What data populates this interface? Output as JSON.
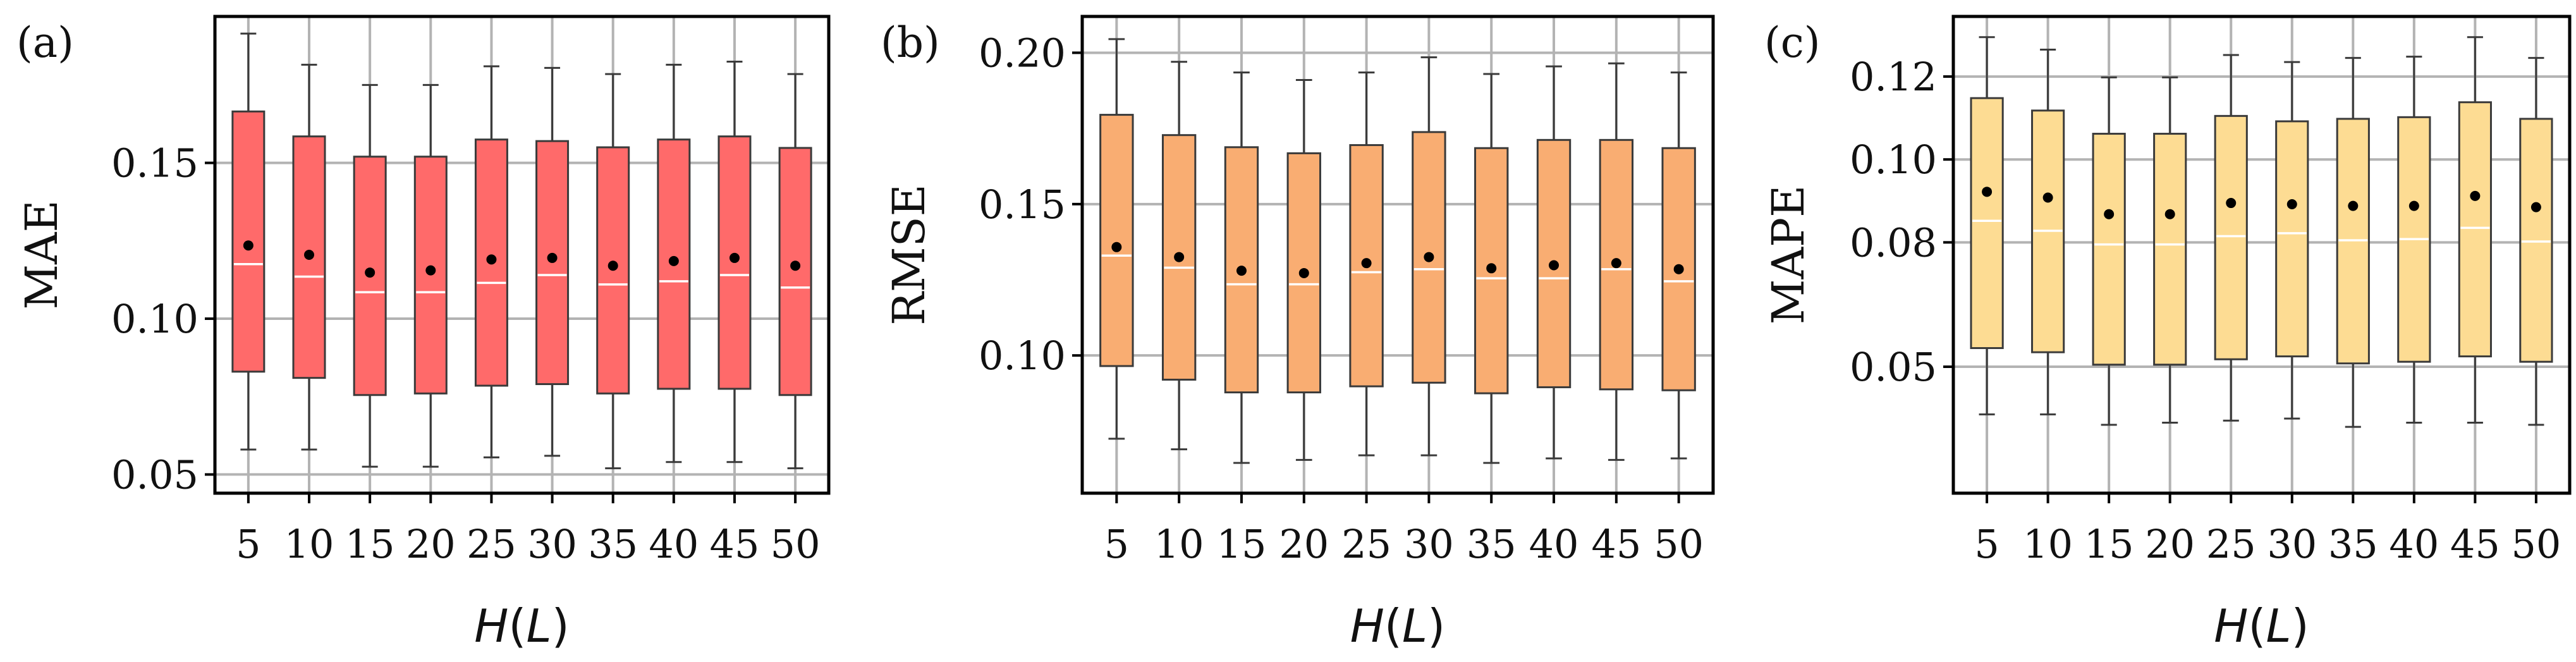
{
  "chart_data": [
    {
      "panel_label": "(a)",
      "type": "box",
      "ylabel": "MAE",
      "xlabel": "H(L)",
      "xlabel_parts": {
        "var": "H",
        "open": "(",
        "arg": "L",
        "close": ")"
      },
      "categories": [
        "5",
        "10",
        "15",
        "20",
        "25",
        "30",
        "35",
        "40",
        "45",
        "50"
      ],
      "ylim": [
        0.044,
        0.197
      ],
      "yticks": [
        0.05,
        0.1,
        0.15
      ],
      "ytick_labels": [
        "0.05",
        "0.10",
        "0.15"
      ],
      "grid": true,
      "box_color": "#ff6a6a",
      "boxes": [
        {
          "whisker_low": 0.058,
          "q1": 0.083,
          "median": 0.1175,
          "mean": 0.1235,
          "q3": 0.1665,
          "whisker_high": 0.1915
        },
        {
          "whisker_low": 0.058,
          "q1": 0.081,
          "median": 0.1135,
          "mean": 0.1205,
          "q3": 0.1585,
          "whisker_high": 0.1815
        },
        {
          "whisker_low": 0.0525,
          "q1": 0.0755,
          "median": 0.1085,
          "mean": 0.1148,
          "q3": 0.152,
          "whisker_high": 0.175
        },
        {
          "whisker_low": 0.0525,
          "q1": 0.076,
          "median": 0.1085,
          "mean": 0.1155,
          "q3": 0.152,
          "whisker_high": 0.175
        },
        {
          "whisker_low": 0.0555,
          "q1": 0.0785,
          "median": 0.1115,
          "mean": 0.119,
          "q3": 0.1575,
          "whisker_high": 0.181
        },
        {
          "whisker_low": 0.056,
          "q1": 0.079,
          "median": 0.114,
          "mean": 0.1195,
          "q3": 0.157,
          "whisker_high": 0.1805
        },
        {
          "whisker_low": 0.052,
          "q1": 0.076,
          "median": 0.111,
          "mean": 0.117,
          "q3": 0.155,
          "whisker_high": 0.1785
        },
        {
          "whisker_low": 0.054,
          "q1": 0.0775,
          "median": 0.112,
          "mean": 0.1185,
          "q3": 0.1575,
          "whisker_high": 0.1815
        },
        {
          "whisker_low": 0.054,
          "q1": 0.0775,
          "median": 0.114,
          "mean": 0.1195,
          "q3": 0.1585,
          "whisker_high": 0.1825
        },
        {
          "whisker_low": 0.052,
          "q1": 0.0755,
          "median": 0.11,
          "mean": 0.117,
          "q3": 0.1548,
          "whisker_high": 0.1785
        }
      ]
    },
    {
      "panel_label": "(b)",
      "type": "box",
      "ylabel": "RMSE",
      "xlabel": "H(L)",
      "xlabel_parts": {
        "var": "H",
        "open": "(",
        "arg": "L",
        "close": ")"
      },
      "categories": [
        "5",
        "10",
        "15",
        "20",
        "25",
        "30",
        "35",
        "40",
        "45",
        "50"
      ],
      "ylim": [
        0.0545,
        0.212
      ],
      "yticks": [
        0.1,
        0.15,
        0.2
      ],
      "ytick_labels": [
        "0.10",
        "0.15",
        "0.20"
      ],
      "grid": true,
      "box_color": "#f9ad72",
      "boxes": [
        {
          "whisker_low": 0.0725,
          "q1": 0.0965,
          "median": 0.133,
          "mean": 0.1358,
          "q3": 0.1795,
          "whisker_high": 0.2045
        },
        {
          "whisker_low": 0.069,
          "q1": 0.092,
          "median": 0.129,
          "mean": 0.1325,
          "q3": 0.1728,
          "whisker_high": 0.197
        },
        {
          "whisker_low": 0.0645,
          "q1": 0.0878,
          "median": 0.1235,
          "mean": 0.128,
          "q3": 0.1688,
          "whisker_high": 0.1935
        },
        {
          "whisker_low": 0.0655,
          "q1": 0.0878,
          "median": 0.1235,
          "mean": 0.1272,
          "q3": 0.1668,
          "whisker_high": 0.191
        },
        {
          "whisker_low": 0.067,
          "q1": 0.0898,
          "median": 0.1275,
          "mean": 0.1305,
          "q3": 0.1695,
          "whisker_high": 0.1935
        },
        {
          "whisker_low": 0.067,
          "q1": 0.091,
          "median": 0.1285,
          "mean": 0.1325,
          "q3": 0.1738,
          "whisker_high": 0.1985
        },
        {
          "whisker_low": 0.0645,
          "q1": 0.0875,
          "median": 0.1255,
          "mean": 0.1288,
          "q3": 0.1685,
          "whisker_high": 0.193
        },
        {
          "whisker_low": 0.066,
          "q1": 0.0895,
          "median": 0.1255,
          "mean": 0.1298,
          "q3": 0.1712,
          "whisker_high": 0.1955
        },
        {
          "whisker_low": 0.0655,
          "q1": 0.0888,
          "median": 0.1285,
          "mean": 0.1305,
          "q3": 0.1712,
          "whisker_high": 0.1965
        },
        {
          "whisker_low": 0.066,
          "q1": 0.0885,
          "median": 0.1245,
          "mean": 0.1285,
          "q3": 0.1685,
          "whisker_high": 0.1935
        }
      ]
    },
    {
      "panel_label": "(c)",
      "type": "box",
      "ylabel": "MAPE",
      "xlabel": "H(L)",
      "xlabel_parts": {
        "var": "H",
        "open": "(",
        "arg": "L",
        "close": ")"
      },
      "categories": [
        "5",
        "10",
        "15",
        "20",
        "25",
        "30",
        "35",
        "40",
        "45",
        "50"
      ],
      "ylim": [
        0.0195,
        0.1345
      ],
      "yticks": [
        0.05,
        0.08,
        0.1,
        0.12
      ],
      "ytick_labels": [
        "0.05",
        "0.08",
        "0.10",
        "0.12"
      ],
      "grid": true,
      "box_color": "#fddc93",
      "boxes": [
        {
          "whisker_low": 0.0385,
          "q1": 0.0545,
          "median": 0.0852,
          "mean": 0.0922,
          "q3": 0.1148,
          "whisker_high": 0.1295
        },
        {
          "whisker_low": 0.0385,
          "q1": 0.0535,
          "median": 0.0828,
          "mean": 0.0908,
          "q3": 0.1118,
          "whisker_high": 0.1265
        },
        {
          "whisker_low": 0.036,
          "q1": 0.0505,
          "median": 0.0795,
          "mean": 0.0868,
          "q3": 0.1062,
          "whisker_high": 0.1198
        },
        {
          "whisker_low": 0.0365,
          "q1": 0.0505,
          "median": 0.0795,
          "mean": 0.0868,
          "q3": 0.1062,
          "whisker_high": 0.1198
        },
        {
          "whisker_low": 0.037,
          "q1": 0.0518,
          "median": 0.0815,
          "mean": 0.0895,
          "q3": 0.1105,
          "whisker_high": 0.1252
        },
        {
          "whisker_low": 0.0375,
          "q1": 0.0525,
          "median": 0.0822,
          "mean": 0.0892,
          "q3": 0.1092,
          "whisker_high": 0.1235
        },
        {
          "whisker_low": 0.0355,
          "q1": 0.0508,
          "median": 0.0805,
          "mean": 0.0888,
          "q3": 0.1098,
          "whisker_high": 0.1245
        },
        {
          "whisker_low": 0.0365,
          "q1": 0.0512,
          "median": 0.0808,
          "mean": 0.0888,
          "q3": 0.1102,
          "whisker_high": 0.1248
        },
        {
          "whisker_low": 0.0365,
          "q1": 0.0525,
          "median": 0.0835,
          "mean": 0.0912,
          "q3": 0.1138,
          "whisker_high": 0.1295
        },
        {
          "whisker_low": 0.036,
          "q1": 0.0512,
          "median": 0.0802,
          "mean": 0.0885,
          "q3": 0.1098,
          "whisker_high": 0.1245
        }
      ]
    }
  ]
}
